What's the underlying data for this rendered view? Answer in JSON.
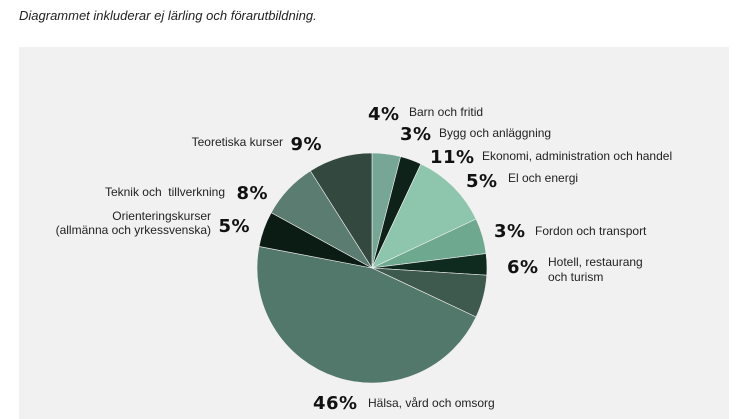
{
  "caption": "Diagrammet inkluderar ej lärling och förarutbildning.",
  "chart_data": {
    "type": "pie",
    "start_angle": "top",
    "direction": "clockwise",
    "slices": [
      {
        "label": "Barn och fritid",
        "pct_text": "4%",
        "value": 4,
        "color": "#76a796"
      },
      {
        "label": "Bygg och anläggning",
        "pct_text": "3%",
        "value": 3,
        "color": "#0e2219"
      },
      {
        "label": "Ekonomi, administration och handel",
        "pct_text": "11%",
        "value": 11,
        "color": "#8dc6ad"
      },
      {
        "label": "El och energi",
        "pct_text": "5%",
        "value": 5,
        "color": "#6da88f"
      },
      {
        "label": "Fordon och transport",
        "pct_text": "3%",
        "value": 3,
        "color": "#0f2a1f"
      },
      {
        "label": "Hotell, restaurang och turism",
        "pct_text": "6%",
        "value": 6,
        "color": "#3e5a4e"
      },
      {
        "label": "Hälsa, vård och omsorg",
        "pct_text": "46%",
        "value": 46,
        "color": "#52786b"
      },
      {
        "label": "Orienteringskurser (allmänna och yrkessvenska)",
        "pct_text": "5%",
        "value": 5,
        "color": "#0b1c15"
      },
      {
        "label": "Teknik och  tillverkning",
        "pct_text": "8%",
        "value": 8,
        "color": "#5b7c70"
      },
      {
        "label": "Teoretiska kurser",
        "pct_text": "9%",
        "value": 9,
        "color": "#334940"
      }
    ]
  }
}
